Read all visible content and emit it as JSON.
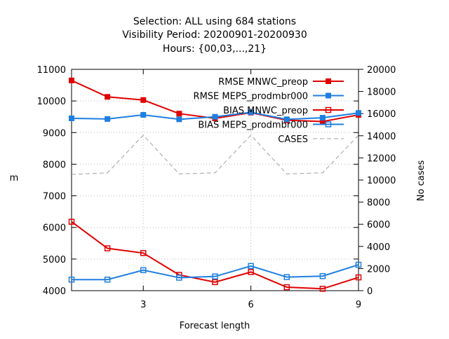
{
  "title_lines": [
    "Selection: ALL using   684 stations",
    "Visibility   Period: 20200901-20200930",
    "Hours: {00,03,...,21}"
  ],
  "chart_data": {
    "type": "line",
    "title": "Selection: ALL using   684 stations / Visibility   Period: 20200901-20200930 / Hours: {00,03,...,21}",
    "xlabel": "Forecast length",
    "ylabel": "m",
    "y2label": "No cases",
    "x": [
      1,
      2,
      3,
      4,
      5,
      6,
      7,
      8,
      9
    ],
    "xlim": [
      1,
      9
    ],
    "ylim": [
      4000,
      11000
    ],
    "y2lim": [
      0,
      20000
    ],
    "xticks": [
      3,
      6,
      9
    ],
    "yticks": [
      4000,
      5000,
      6000,
      7000,
      8000,
      9000,
      10000,
      11000
    ],
    "y2ticks": [
      0,
      2000,
      4000,
      6000,
      8000,
      10000,
      12000,
      14000,
      16000,
      18000,
      20000
    ],
    "grid": true,
    "legend_position": "top-right",
    "series": [
      {
        "name": "RMSE MNWC_preop",
        "axis": "left",
        "color": "#e00000",
        "marker": "filled-square",
        "dash": "solid",
        "values": [
          10650,
          10130,
          10030,
          9600,
          9450,
          9630,
          9390,
          9350,
          9560
        ]
      },
      {
        "name": "RMSE MEPS_prodmbr000",
        "axis": "left",
        "color": "#1e7fe0",
        "marker": "filled-square",
        "dash": "solid",
        "values": [
          9450,
          9430,
          9560,
          9420,
          9500,
          9640,
          9420,
          9470,
          9620
        ]
      },
      {
        "name": "BIAS MNWC_preop",
        "axis": "left",
        "color": "#e00000",
        "marker": "open-square",
        "dash": "solid",
        "values": [
          6180,
          5340,
          5190,
          4500,
          4270,
          4590,
          4110,
          4060,
          4420
        ]
      },
      {
        "name": "BIAS MEPS_prodmbr000",
        "axis": "left",
        "color": "#1e7fe0",
        "marker": "open-square",
        "dash": "solid",
        "values": [
          4350,
          4350,
          4650,
          4410,
          4450,
          4780,
          4430,
          4460,
          4820
        ]
      },
      {
        "name": "CASES",
        "axis": "right",
        "color": "#a0a0a0",
        "marker": "none",
        "dash": "dashed",
        "values": [
          10500,
          10650,
          14050,
          10550,
          10650,
          14050,
          10550,
          10650,
          14050
        ]
      }
    ]
  }
}
